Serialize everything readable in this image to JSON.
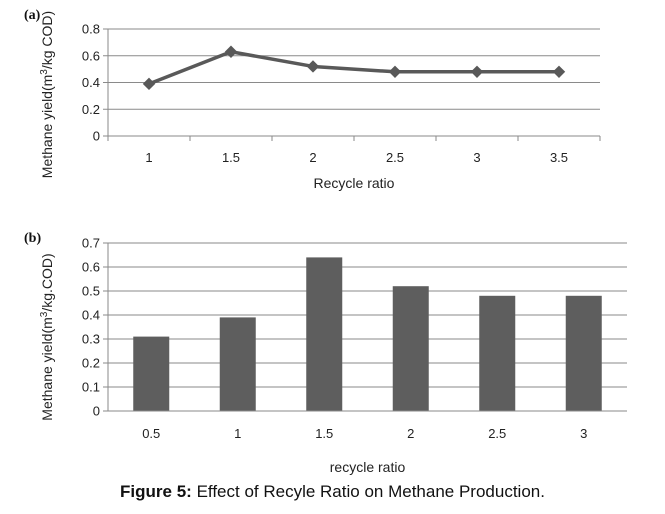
{
  "chart_data": [
    {
      "type": "line",
      "panel_label": "(a)",
      "x": [
        1,
        1.5,
        2,
        2.5,
        3,
        3.5
      ],
      "categories": [
        "1",
        "1.5",
        "2",
        "2.5",
        "3",
        "3.5"
      ],
      "values": [
        0.39,
        0.63,
        0.52,
        0.48,
        0.48,
        0.48
      ],
      "xlabel": "Recycle ratio",
      "ylabel_main": "Methane yield(m",
      "ylabel_sup": "3",
      "ylabel_tail": "/kg COD)",
      "ylim": [
        0,
        0.8
      ],
      "yticks": [
        "0",
        "0.2",
        "0.4",
        "0.6",
        "0.8"
      ],
      "grid": true,
      "marker": "diamond",
      "color": "#595959"
    },
    {
      "type": "bar",
      "panel_label": "(b)",
      "categories": [
        "0.5",
        "1",
        "1.5",
        "2",
        "2.5",
        "3"
      ],
      "values": [
        0.31,
        0.39,
        0.64,
        0.52,
        0.48,
        0.48
      ],
      "xlabel": "recycle ratio",
      "ylabel_main": "Methane  yield(m",
      "ylabel_sup": "3",
      "ylabel_tail": "/kg.COD)",
      "ylim": [
        0,
        0.7
      ],
      "yticks": [
        "0",
        "0.1",
        "0.2",
        "0.3",
        "0.4",
        "0.5",
        "0.6",
        "0.7"
      ],
      "grid": true,
      "color": "#5e5e5e"
    }
  ],
  "caption": {
    "label": "Figure 5:",
    "text": " Effect of Recyle Ratio on Methane Production."
  }
}
